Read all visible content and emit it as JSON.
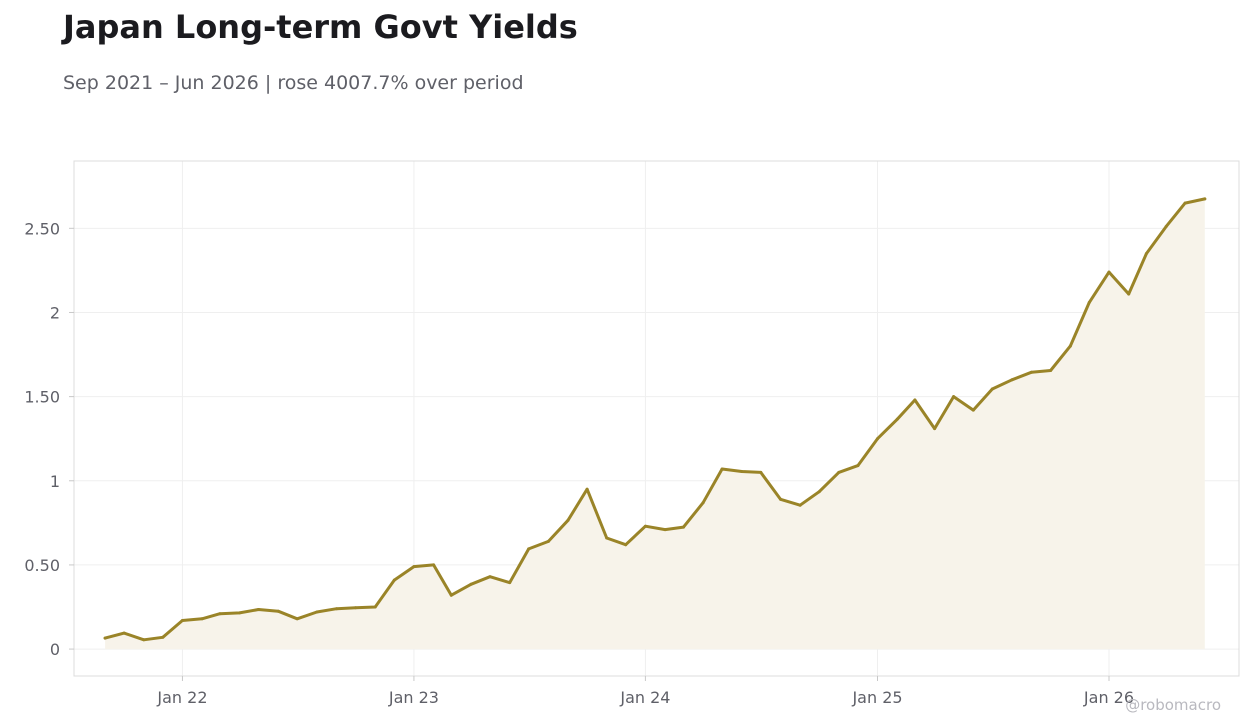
{
  "chart_data": {
    "type": "area",
    "title": "Japan Long-term Govt Yields",
    "subtitle": "Sep 2021 – Jun 2026 | rose 4007.7% over period",
    "watermark": "@robomacro",
    "xlabel": "",
    "ylabel": "",
    "ylim": [
      -0.16,
      2.9
    ],
    "xlim": [
      "2021-07-14",
      "2026-07-25"
    ],
    "y_ticks": [
      {
        "value": 0,
        "label": "0"
      },
      {
        "value": 0.5,
        "label": "0.50"
      },
      {
        "value": 1,
        "label": "1"
      },
      {
        "value": 1.5,
        "label": "1.50"
      },
      {
        "value": 2,
        "label": "2"
      },
      {
        "value": 2.5,
        "label": "2.50"
      }
    ],
    "x_ticks": [
      {
        "value": "2022-01-01",
        "label": "Jan 22"
      },
      {
        "value": "2023-01-01",
        "label": "Jan 23"
      },
      {
        "value": "2024-01-01",
        "label": "Jan 24"
      },
      {
        "value": "2025-01-01",
        "label": "Jan 25"
      },
      {
        "value": "2026-01-01",
        "label": "Jan 26"
      }
    ],
    "grid": true,
    "line_color": "#9a8428",
    "fill_color": "#f7f3ea",
    "series": [
      {
        "x": [
          "2021-09-01",
          "2021-10-01",
          "2021-11-01",
          "2021-12-01",
          "2022-01-01",
          "2022-02-01",
          "2022-03-01",
          "2022-04-01",
          "2022-05-01",
          "2022-06-01",
          "2022-07-01",
          "2022-08-01",
          "2022-09-01",
          "2022-10-01",
          "2022-11-01",
          "2022-12-01",
          "2023-01-01",
          "2023-02-01",
          "2023-03-01",
          "2023-04-01",
          "2023-05-01",
          "2023-06-01",
          "2023-07-01",
          "2023-08-01",
          "2023-09-01",
          "2023-10-01",
          "2023-11-01",
          "2023-12-01",
          "2024-01-01",
          "2024-02-01",
          "2024-03-01",
          "2024-04-01",
          "2024-05-01",
          "2024-06-01",
          "2024-07-01",
          "2024-08-01",
          "2024-09-01",
          "2024-10-01",
          "2024-11-01",
          "2024-12-01",
          "2025-01-01",
          "2025-02-01",
          "2025-03-01",
          "2025-04-01",
          "2025-05-01",
          "2025-06-01",
          "2025-07-01",
          "2025-08-01",
          "2025-09-01",
          "2025-10-01",
          "2025-11-01",
          "2025-12-01",
          "2026-01-01",
          "2026-02-01",
          "2026-03-01",
          "2026-04-01",
          "2026-05-01",
          "2026-06-01"
        ],
        "values": [
          0.065,
          0.095,
          0.055,
          0.07,
          0.17,
          0.18,
          0.21,
          0.215,
          0.235,
          0.225,
          0.18,
          0.22,
          0.24,
          0.245,
          0.25,
          0.41,
          0.49,
          0.5,
          0.32,
          0.385,
          0.43,
          0.395,
          0.595,
          0.64,
          0.765,
          0.95,
          0.66,
          0.62,
          0.73,
          0.71,
          0.725,
          0.87,
          1.07,
          1.055,
          1.05,
          0.89,
          0.855,
          0.935,
          1.05,
          1.09,
          1.25,
          1.365,
          1.48,
          1.31,
          1.5,
          1.42,
          1.545,
          1.6,
          1.645,
          1.655,
          1.8,
          2.06,
          2.24,
          2.11,
          2.35,
          2.51,
          2.65,
          2.675
        ]
      }
    ]
  }
}
